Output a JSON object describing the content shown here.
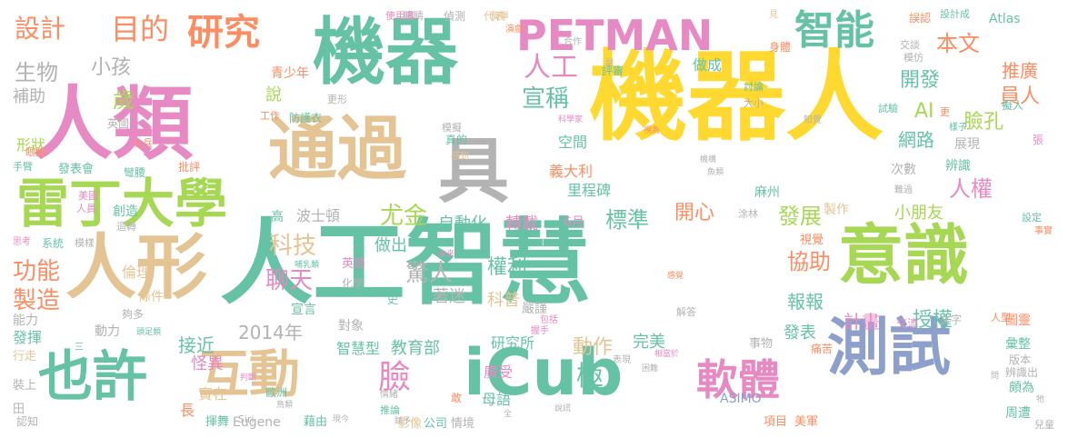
{
  "palette": {
    "teal": "#66c2a5",
    "orange": "#fc8d62",
    "blue": "#8da0cb",
    "pink": "#e78ac3",
    "green": "#a6d854",
    "yellow": "#ffd92f",
    "tan": "#e5c494",
    "gray": "#b3b3b3"
  },
  "words": [
    {
      "text": "機器人",
      "size": 108,
      "color": "yellow"
    },
    {
      "text": "人工智慧",
      "size": 102,
      "color": "teal"
    },
    {
      "text": "人類",
      "size": 88,
      "color": "pink"
    },
    {
      "text": "機器",
      "size": 80,
      "color": "teal"
    },
    {
      "text": "通過",
      "size": 76,
      "color": "tan"
    },
    {
      "text": "人形",
      "size": 78,
      "color": "tan"
    },
    {
      "text": "具",
      "size": 78,
      "color": "gray"
    },
    {
      "text": "意識",
      "size": 72,
      "color": "green"
    },
    {
      "text": "測試",
      "size": 68,
      "color": "blue"
    },
    {
      "text": "iCub",
      "size": 70,
      "color": "teal"
    },
    {
      "text": "也許",
      "size": 60,
      "color": "teal"
    },
    {
      "text": "互動",
      "size": 56,
      "color": "tan"
    },
    {
      "text": "雷丁大學",
      "size": 58,
      "color": "green"
    },
    {
      "text": "PETMAN",
      "size": 46,
      "color": "pink"
    },
    {
      "text": "軟體",
      "size": 46,
      "color": "pink"
    },
    {
      "text": "智能",
      "size": 44,
      "color": "teal"
    },
    {
      "text": "研究",
      "size": 40,
      "color": "orange"
    },
    {
      "text": "目的",
      "size": 32,
      "color": "orange"
    },
    {
      "text": "設計",
      "size": 28,
      "color": "orange"
    },
    {
      "text": "生物",
      "size": 24,
      "color": "gray"
    },
    {
      "text": "小孩",
      "size": 22,
      "color": "gray"
    },
    {
      "text": "補助",
      "size": 18,
      "color": "gray"
    },
    {
      "text": "歲",
      "size": 24,
      "color": "green"
    },
    {
      "text": "人工",
      "size": 30,
      "color": "pink"
    },
    {
      "text": "宣稱",
      "size": 26,
      "color": "teal"
    },
    {
      "text": "本文",
      "size": 24,
      "color": "orange"
    },
    {
      "text": "員人",
      "size": 22,
      "color": "orange"
    },
    {
      "text": "開發",
      "size": 22,
      "color": "teal"
    },
    {
      "text": "AI",
      "size": 22,
      "color": "green"
    },
    {
      "text": "臉孔",
      "size": 22,
      "color": "green"
    },
    {
      "text": "推廣",
      "size": 20,
      "color": "orange"
    },
    {
      "text": "網路",
      "size": 20,
      "color": "teal"
    },
    {
      "text": "人權",
      "size": 24,
      "color": "pink"
    },
    {
      "text": "發展",
      "size": 24,
      "color": "green"
    },
    {
      "text": "尤金",
      "size": 26,
      "color": "green"
    },
    {
      "text": "科技",
      "size": 26,
      "color": "tan"
    },
    {
      "text": "聊天",
      "size": 26,
      "color": "pink"
    },
    {
      "text": "驚人",
      "size": 26,
      "color": "gray"
    },
    {
      "text": "權利",
      "size": 22,
      "color": "teal"
    },
    {
      "text": "標準",
      "size": 24,
      "color": "teal"
    },
    {
      "text": "開心",
      "size": 22,
      "color": "orange"
    },
    {
      "text": "自動化",
      "size": 18,
      "color": "teal"
    },
    {
      "text": "轉載",
      "size": 18,
      "color": "pink"
    },
    {
      "text": "協助",
      "size": 24,
      "color": "orange"
    },
    {
      "text": "小朋友",
      "size": 18,
      "color": "green"
    },
    {
      "text": "功能",
      "size": 26,
      "color": "orange"
    },
    {
      "text": "製造",
      "size": 26,
      "color": "orange"
    },
    {
      "text": "臉",
      "size": 36,
      "color": "pink"
    },
    {
      "text": "極",
      "size": 30,
      "color": "teal"
    },
    {
      "text": "動作",
      "size": 22,
      "color": "tan"
    },
    {
      "text": "報報",
      "size": 20,
      "color": "teal"
    },
    {
      "text": "授權",
      "size": 22,
      "color": "teal"
    },
    {
      "text": "計畫",
      "size": 20,
      "color": "pink"
    },
    {
      "text": "接近",
      "size": 20,
      "color": "teal"
    },
    {
      "text": "2014年",
      "size": 20,
      "color": "gray"
    },
    {
      "text": "智慧型",
      "size": 16,
      "color": "teal"
    },
    {
      "text": "教育部",
      "size": 18,
      "color": "teal"
    },
    {
      "text": "研究所",
      "size": 16,
      "color": "teal"
    },
    {
      "text": "怪異",
      "size": 18,
      "color": "pink"
    },
    {
      "text": "實在",
      "size": 16,
      "color": "tan"
    },
    {
      "text": "長",
      "size": 16,
      "color": "orange"
    },
    {
      "text": "完美",
      "size": 18,
      "color": "teal"
    },
    {
      "text": "發表",
      "size": 18,
      "color": "teal"
    },
    {
      "text": "做出",
      "size": 18,
      "color": "teal"
    },
    {
      "text": "著迷",
      "size": 18,
      "color": "gray"
    },
    {
      "text": "科普",
      "size": 18,
      "color": "tan"
    },
    {
      "text": "嚴謹",
      "size": 14,
      "color": "gray"
    },
    {
      "text": "廣受",
      "size": 16,
      "color": "pink"
    },
    {
      "text": "母語",
      "size": 16,
      "color": "teal"
    },
    {
      "text": "製作",
      "size": 14,
      "color": "tan"
    },
    {
      "text": "視覺",
      "size": 13,
      "color": "orange"
    },
    {
      "text": "事物",
      "size": 13,
      "color": "gray"
    },
    {
      "text": "義大利",
      "size": 16,
      "color": "orange"
    },
    {
      "text": "里程碑",
      "size": 16,
      "color": "teal"
    },
    {
      "text": "空間",
      "size": 16,
      "color": "teal"
    },
    {
      "text": "做成",
      "size": 16,
      "color": "teal"
    },
    {
      "text": "展現",
      "size": 14,
      "color": "gray"
    },
    {
      "text": "次數",
      "size": 14,
      "color": "gray"
    },
    {
      "text": "辨識",
      "size": 14,
      "color": "teal"
    },
    {
      "text": "麻州",
      "size": 14,
      "color": "teal"
    },
    {
      "text": "說",
      "size": 18,
      "color": "green"
    },
    {
      "text": "倫理",
      "size": 16,
      "color": "tan"
    },
    {
      "text": "條件",
      "size": 14,
      "color": "tan"
    },
    {
      "text": "宣言",
      "size": 14,
      "color": "teal"
    },
    {
      "text": "對象",
      "size": 14,
      "color": "gray"
    },
    {
      "text": "動力",
      "size": 14,
      "color": "gray"
    },
    {
      "text": "能力",
      "size": 14,
      "color": "gray"
    },
    {
      "text": "發揮",
      "size": 16,
      "color": "teal"
    },
    {
      "text": "行走",
      "size": 13,
      "color": "tan"
    },
    {
      "text": "裝上",
      "size": 13,
      "color": "gray"
    },
    {
      "text": "田",
      "size": 13,
      "color": "gray"
    },
    {
      "text": "認知",
      "size": 12,
      "color": "gray"
    },
    {
      "text": "揮舞",
      "size": 13,
      "color": "teal"
    },
    {
      "text": "Eugene",
      "size": 14,
      "color": "gray"
    },
    {
      "text": "藉由",
      "size": 13,
      "color": "teal"
    },
    {
      "text": "影像",
      "size": 13,
      "color": "tan"
    },
    {
      "text": "公司",
      "size": 13,
      "color": "teal"
    },
    {
      "text": "情境",
      "size": 13,
      "color": "gray"
    },
    {
      "text": "ASIMO",
      "size": 14,
      "color": "blue"
    },
    {
      "text": "項目",
      "size": 13,
      "color": "orange"
    },
    {
      "text": "美軍",
      "size": 13,
      "color": "orange"
    },
    {
      "text": "頗為",
      "size": 14,
      "color": "teal"
    },
    {
      "text": "周遭",
      "size": 14,
      "color": "teal"
    },
    {
      "text": "圖靈",
      "size": 14,
      "color": "orange"
    },
    {
      "text": "彙整",
      "size": 14,
      "color": "teal"
    },
    {
      "text": "版本",
      "size": 12,
      "color": "gray"
    },
    {
      "text": "人型",
      "size": 11,
      "color": "orange"
    },
    {
      "text": "兒童",
      "size": 11,
      "color": "gray"
    },
    {
      "text": "辨識出",
      "size": 12,
      "color": "gray"
    },
    {
      "text": "文字",
      "size": 12,
      "color": "gray"
    },
    {
      "text": "交流",
      "size": 12,
      "color": "pink"
    },
    {
      "text": "痛苦",
      "size": 12,
      "color": "orange"
    },
    {
      "text": "青少年",
      "size": 14,
      "color": "orange"
    },
    {
      "text": "更形",
      "size": 11,
      "color": "gray"
    },
    {
      "text": "工作",
      "size": 11,
      "color": "orange"
    },
    {
      "text": "防護衣",
      "size": 12,
      "color": "teal"
    },
    {
      "text": "英國",
      "size": 12,
      "color": "gray"
    },
    {
      "text": "形狀",
      "size": 16,
      "color": "green"
    },
    {
      "text": "手臂",
      "size": 11,
      "color": "teal"
    },
    {
      "text": "士兵",
      "size": 11,
      "color": "orange"
    },
    {
      "text": "眼臉",
      "size": 11,
      "color": "orange"
    },
    {
      "text": "發表會",
      "size": 13,
      "color": "teal"
    },
    {
      "text": "彎腰",
      "size": 12,
      "color": "teal"
    },
    {
      "text": "批評",
      "size": 12,
      "color": "orange"
    },
    {
      "text": "美國",
      "size": 11,
      "color": "pink"
    },
    {
      "text": "人員",
      "size": 11,
      "color": "pink"
    },
    {
      "text": "創造",
      "size": 14,
      "color": "teal"
    },
    {
      "text": "迴轉",
      "size": 11,
      "color": "gray"
    },
    {
      "text": "波士頓",
      "size": 16,
      "color": "gray"
    },
    {
      "text": "高",
      "size": 14,
      "color": "teal"
    },
    {
      "text": "系統",
      "size": 12,
      "color": "teal"
    },
    {
      "text": "模樣",
      "size": 11,
      "color": "gray"
    },
    {
      "text": "思考",
      "size": 10,
      "color": "pink"
    },
    {
      "text": "夠多",
      "size": 12,
      "color": "gray"
    },
    {
      "text": "6月",
      "size": 14,
      "color": "pink"
    },
    {
      "text": "設定",
      "size": 11,
      "color": "teal"
    },
    {
      "text": "事實",
      "size": 10,
      "color": "orange"
    },
    {
      "text": "難過",
      "size": 10,
      "color": "gray"
    },
    {
      "text": "簡單",
      "size": 10,
      "color": "tan"
    },
    {
      "text": "眼睛",
      "size": 11,
      "color": "gray"
    },
    {
      "text": "使用者",
      "size": 11,
      "color": "pink"
    },
    {
      "text": "偵測",
      "size": 12,
      "color": "gray"
    },
    {
      "text": "代表",
      "size": 12,
      "color": "tan"
    },
    {
      "text": "見",
      "size": 10,
      "color": "tan"
    },
    {
      "text": "誤認",
      "size": 12,
      "color": "orange"
    },
    {
      "text": "設計成",
      "size": 11,
      "color": "teal"
    },
    {
      "text": "Atlas",
      "size": 14,
      "color": "teal"
    },
    {
      "text": "演戲",
      "size": 10,
      "color": "orange"
    },
    {
      "text": "合作",
      "size": 10,
      "color": "gray"
    },
    {
      "text": "評審",
      "size": 12,
      "color": "teal"
    },
    {
      "text": "身體",
      "size": 12,
      "color": "orange"
    },
    {
      "text": "交談",
      "size": 11,
      "color": "gray"
    },
    {
      "text": "模仿",
      "size": 11,
      "color": "gray"
    },
    {
      "text": "討論",
      "size": 11,
      "color": "teal"
    },
    {
      "text": "大小",
      "size": 11,
      "color": "gray"
    },
    {
      "text": "試驗",
      "size": 11,
      "color": "teal"
    },
    {
      "text": "知覺",
      "size": 10,
      "color": "gray"
    },
    {
      "text": "擬人",
      "size": 12,
      "color": "teal"
    },
    {
      "text": "樣子",
      "size": 10,
      "color": "teal"
    },
    {
      "text": "更",
      "size": 11,
      "color": "orange"
    },
    {
      "text": "張",
      "size": 12,
      "color": "pink"
    },
    {
      "text": "魚類",
      "size": 9,
      "color": "gray"
    },
    {
      "text": "機構",
      "size": 9,
      "color": "gray"
    },
    {
      "text": "涂林",
      "size": 11,
      "color": "gray"
    },
    {
      "text": "視為",
      "size": 9,
      "color": "orange"
    },
    {
      "text": "科學家",
      "size": 9,
      "color": "pink"
    },
    {
      "text": "模擬",
      "size": 11,
      "color": "gray"
    },
    {
      "text": "真的",
      "size": 12,
      "color": "teal"
    },
    {
      "text": "感到",
      "size": 10,
      "color": "tan"
    },
    {
      "text": "非",
      "size": 11,
      "color": "gray"
    },
    {
      "text": "副",
      "size": 9,
      "color": "gray"
    },
    {
      "text": "哺乳類",
      "size": 9,
      "color": "teal"
    },
    {
      "text": "頭足類",
      "size": 9,
      "color": "teal"
    },
    {
      "text": "三",
      "size": 10,
      "color": "teal"
    },
    {
      "text": "未來",
      "size": 9,
      "color": "pink"
    },
    {
      "text": "英語",
      "size": 13,
      "color": "pink"
    },
    {
      "text": "化學",
      "size": 12,
      "color": "gray"
    },
    {
      "text": "史",
      "size": 12,
      "color": "teal"
    },
    {
      "text": "Siri",
      "size": 11,
      "color": "gray"
    },
    {
      "text": "歐洲",
      "size": 12,
      "color": "teal"
    },
    {
      "text": "鳥類",
      "size": 9,
      "color": "gray"
    },
    {
      "text": "現今",
      "size": 9,
      "color": "gray"
    },
    {
      "text": "判斷",
      "size": 9,
      "color": "pink"
    },
    {
      "text": "賦予",
      "size": 9,
      "color": "gray"
    },
    {
      "text": "情緒",
      "size": 10,
      "color": "gray"
    },
    {
      "text": "推論",
      "size": 11,
      "color": "teal"
    },
    {
      "text": "敢",
      "size": 12,
      "color": "orange"
    },
    {
      "text": "全",
      "size": 9,
      "color": "gray"
    },
    {
      "text": "說謊",
      "size": 9,
      "color": "gray"
    },
    {
      "text": "表現",
      "size": 10,
      "color": "gray"
    },
    {
      "text": "相當於",
      "size": 9,
      "color": "pink"
    },
    {
      "text": "困難",
      "size": 9,
      "color": "gray"
    },
    {
      "text": "握手",
      "size": 10,
      "color": "pink"
    },
    {
      "text": "包括",
      "size": 10,
      "color": "pink"
    },
    {
      "text": "解答",
      "size": 11,
      "color": "gray"
    },
    {
      "text": "感覺",
      "size": 9,
      "color": "orange"
    },
    {
      "text": "牠",
      "size": 9,
      "color": "gray"
    },
    {
      "text": "問",
      "size": 9,
      "color": "gray"
    }
  ]
}
